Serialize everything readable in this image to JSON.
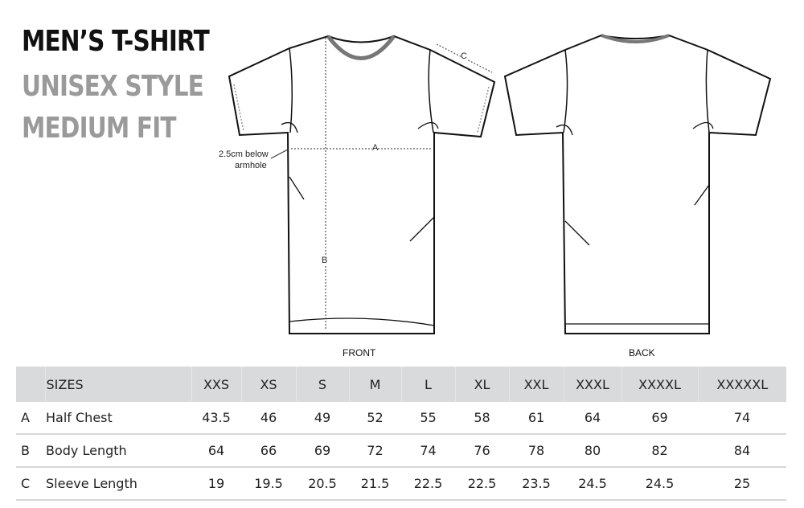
{
  "title": {
    "line1": "MEN’S T-SHIRT",
    "line2": "UNISEX STYLE",
    "line3": "MEDIUM FIT"
  },
  "diagram": {
    "front_label": "FRONT",
    "back_label": "BACK",
    "measure_a": "A",
    "measure_b": "B",
    "measure_c": "C",
    "armhole_note_1": "2.5cm below",
    "armhole_note_2": "armhole"
  },
  "colors": {
    "title_dark": "#111111",
    "title_gray": "#9a9a9a",
    "header_bg": "#d9dadb"
  },
  "table": {
    "header": [
      "SIZES",
      "XXS",
      "XS",
      "S",
      "M",
      "L",
      "XL",
      "XXL",
      "XXXL",
      "XXXXL",
      "XXXXXL"
    ],
    "rows": [
      {
        "key": "A",
        "label": "Half Chest",
        "values": [
          "43.5",
          "46",
          "49",
          "52",
          "55",
          "58",
          "61",
          "64",
          "69",
          "74"
        ]
      },
      {
        "key": "B",
        "label": "Body Length",
        "values": [
          "64",
          "66",
          "69",
          "72",
          "74",
          "76",
          "78",
          "80",
          "82",
          "84"
        ]
      },
      {
        "key": "C",
        "label": "Sleeve Length",
        "values": [
          "19",
          "19.5",
          "20.5",
          "21.5",
          "22.5",
          "22.5",
          "23.5",
          "24.5",
          "24.5",
          "25"
        ]
      }
    ]
  }
}
